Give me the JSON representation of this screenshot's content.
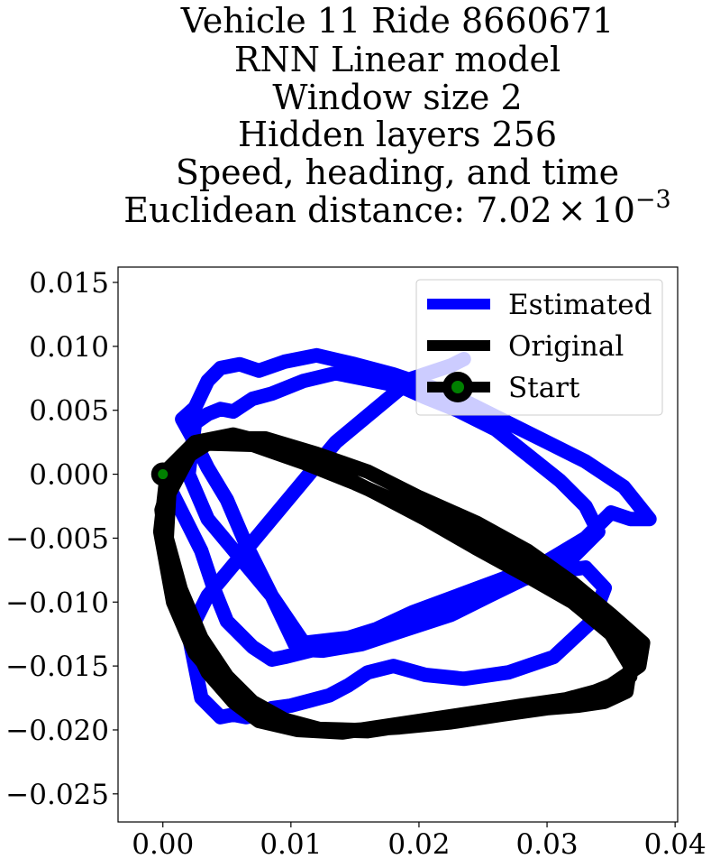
{
  "chart_data": {
    "type": "line",
    "title_lines": [
      "Vehicle 11 Ride 8660671",
      "RNN Linear model",
      "Window size 2",
      "Hidden layers 256",
      "Speed, heading, and time"
    ],
    "metric": {
      "label": "Euclidean distance: ",
      "mantissa": "7.02",
      "times": "×",
      "base": "10",
      "exponent": "−3"
    },
    "xlim": [
      -0.0035,
      0.0402
    ],
    "ylim": [
      -0.0272,
      0.0162
    ],
    "x_ticks": [
      0.0,
      0.01,
      0.02,
      0.03,
      0.04
    ],
    "x_tick_labels": [
      "0.00",
      "0.01",
      "0.02",
      "0.03",
      "0.04"
    ],
    "y_ticks": [
      0.015,
      0.01,
      0.005,
      0.0,
      -0.005,
      -0.01,
      -0.015,
      -0.02,
      -0.025
    ],
    "y_tick_labels": [
      "0.015",
      "0.010",
      "0.005",
      "0.000",
      "−0.005",
      "−0.010",
      "−0.015",
      "−0.020",
      "−0.025"
    ],
    "grid": false,
    "legend_position": "top-right",
    "legend": [
      "Estimated",
      "Original",
      "Start"
    ],
    "series": [
      {
        "name": "Estimated",
        "color": "#0000ff",
        "x": [
          0.0,
          0.0015,
          0.003,
          0.004,
          0.005,
          0.007,
          0.0085,
          0.0095,
          0.0115,
          0.0135,
          0.0165,
          0.0195,
          0.023,
          0.0265,
          0.03,
          0.033,
          0.035,
          0.0365,
          0.038,
          0.036,
          0.033,
          0.03,
          0.027,
          0.024,
          0.021,
          0.018,
          0.015,
          0.012,
          0.0095,
          0.0075,
          0.006,
          0.0045,
          0.0035,
          0.0025,
          0.0015,
          0.0025,
          0.0035,
          0.005,
          0.0065,
          0.0085,
          0.0105,
          0.0125,
          0.0155,
          0.0185,
          0.0225,
          0.0255,
          0.029,
          0.032,
          0.034,
          0.033,
          0.031,
          0.0285,
          0.026,
          0.023,
          0.0205,
          0.0185,
          0.016,
          0.0135,
          0.011,
          0.0085,
          0.007,
          0.0055,
          0.0045,
          0.0035,
          0.0025,
          0.002,
          0.0035,
          0.006,
          0.0085,
          0.011,
          0.0145,
          0.018,
          0.022,
          0.0255,
          0.0295,
          0.033,
          0.0345,
          0.0335,
          0.0305,
          0.027,
          0.0235,
          0.0205,
          0.018,
          0.016,
          0.0145,
          0.013,
          0.0115,
          0.01,
          0.0085,
          0.0075,
          0.0065,
          0.0055,
          0.0045,
          0.003,
          0.002,
          0.0035,
          0.006,
          0.0085,
          0.011,
          0.0135,
          0.0165,
          0.0195,
          0.0225,
          0.0235
        ],
        "y": [
          0.0,
          -0.003,
          -0.006,
          -0.009,
          -0.0115,
          -0.0135,
          -0.0145,
          -0.0143,
          -0.0138,
          -0.0133,
          -0.0122,
          -0.0108,
          -0.0095,
          -0.0082,
          -0.0068,
          -0.005,
          -0.003,
          -0.0035,
          -0.0035,
          -0.001,
          0.001,
          0.0025,
          0.004,
          0.0055,
          0.0068,
          0.0078,
          0.0086,
          0.0093,
          0.0088,
          0.0081,
          0.0086,
          0.0083,
          0.0073,
          0.0052,
          0.0043,
          0.0025,
          0.0005,
          -0.002,
          -0.0055,
          -0.0095,
          -0.0137,
          -0.0138,
          -0.0133,
          -0.0123,
          -0.011,
          -0.0095,
          -0.0078,
          -0.0065,
          -0.0045,
          -0.0025,
          -0.0005,
          0.0015,
          0.0035,
          0.005,
          0.006,
          0.0069,
          0.0074,
          0.0079,
          0.0073,
          0.0063,
          0.0059,
          0.0049,
          0.0051,
          0.0047,
          0.004,
          0.0,
          -0.0035,
          -0.0065,
          -0.0095,
          -0.0132,
          -0.0128,
          -0.0117,
          -0.0103,
          -0.009,
          -0.0078,
          -0.0073,
          -0.0089,
          -0.0115,
          -0.0143,
          -0.0155,
          -0.016,
          -0.0157,
          -0.015,
          -0.0155,
          -0.0165,
          -0.0173,
          -0.0177,
          -0.0181,
          -0.0183,
          -0.0188,
          -0.019,
          -0.0188,
          -0.019,
          -0.0175,
          -0.0125,
          -0.0095,
          -0.0065,
          -0.0035,
          -0.0005,
          0.0025,
          0.005,
          0.0075,
          0.0085,
          0.009
        ]
      },
      {
        "name": "Original",
        "color": "#000000",
        "x": [
          0.0,
          0.0025,
          0.0055,
          0.009,
          0.0125,
          0.0165,
          0.0205,
          0.0245,
          0.0285,
          0.032,
          0.035,
          0.0365,
          0.0362,
          0.0345,
          0.0325,
          0.03,
          0.0265,
          0.0225,
          0.0185,
          0.015,
          0.0115,
          0.0085,
          0.0065,
          0.0045,
          0.0025,
          0.0008,
          -0.0002,
          0.0003,
          0.002,
          0.0045,
          0.008,
          0.012,
          0.016,
          0.02,
          0.0245,
          0.0285,
          0.032,
          0.035,
          0.0375,
          0.0372,
          0.035,
          0.0325,
          0.0295,
          0.026,
          0.022,
          0.018,
          0.014,
          0.0105,
          0.0075,
          0.0055,
          0.0035,
          0.0018,
          0.0005,
          -0.0001,
          0.001,
          0.0035,
          0.007,
          0.011,
          0.015,
          0.0195,
          0.024,
          0.028,
          0.0315,
          0.0345,
          0.0365,
          0.0365,
          0.0345,
          0.0315,
          0.028,
          0.024,
          0.02,
          0.016,
          0.0125,
          0.0095,
          0.007,
          0.005,
          0.003,
          0.0014,
          0.0003,
          0.0005,
          0.0022
        ],
        "y": [
          0.0,
          0.0025,
          0.0031,
          0.0022,
          0.0006,
          -0.0014,
          -0.0035,
          -0.0058,
          -0.008,
          -0.01,
          -0.0125,
          -0.015,
          -0.017,
          -0.0178,
          -0.0181,
          -0.0183,
          -0.0188,
          -0.0194,
          -0.0198,
          -0.02,
          -0.0199,
          -0.0194,
          -0.0183,
          -0.0163,
          -0.014,
          -0.01,
          -0.0045,
          0.0,
          0.0018,
          0.0028,
          0.0028,
          0.0016,
          0.0002,
          -0.0018,
          -0.0038,
          -0.006,
          -0.0085,
          -0.011,
          -0.0132,
          -0.015,
          -0.0165,
          -0.0175,
          -0.018,
          -0.0184,
          -0.019,
          -0.0196,
          -0.0202,
          -0.02,
          -0.0193,
          -0.0178,
          -0.0155,
          -0.012,
          -0.008,
          -0.0028,
          0.0008,
          0.0024,
          0.0023,
          0.0009,
          -0.0007,
          -0.0027,
          -0.0048,
          -0.007,
          -0.0095,
          -0.0118,
          -0.0138,
          -0.0158,
          -0.0168,
          -0.0176,
          -0.0181,
          -0.0187,
          -0.0195,
          -0.0201,
          -0.02,
          -0.0192,
          -0.0178,
          -0.0158,
          -0.0128,
          -0.009,
          -0.005,
          -0.0015,
          0.0017
        ]
      }
    ],
    "start_marker": {
      "x": 0.0,
      "y": 0.0,
      "fill": "#008000",
      "edge": "#000000"
    }
  }
}
